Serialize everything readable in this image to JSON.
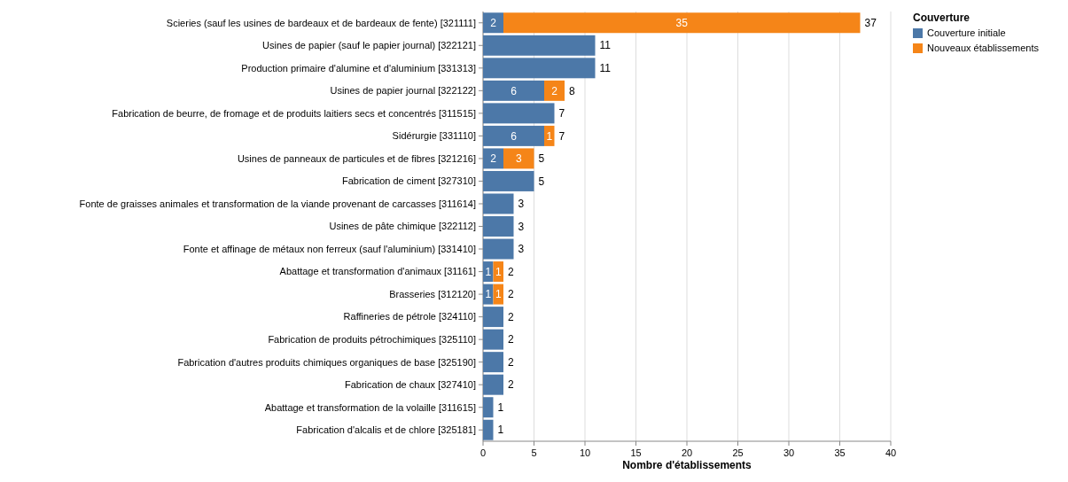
{
  "chart_data": {
    "type": "bar",
    "orientation": "horizontal",
    "stacked": true,
    "xlabel": "Nombre d'établissements",
    "legend_title": "Couverture",
    "legend": "top right",
    "grid": "x",
    "categories": [
      "Scieries (sauf les usines de bardeaux et de bardeaux de fente) [321111]",
      "Usines de papier (sauf le papier journal) [322121]",
      "Production primaire d'alumine et d'aluminium [331313]",
      "Usines de papier journal [322122]",
      "Fabrication de beurre, de fromage et de produits laitiers secs et concentrés [311515]",
      "Sidérurgie [331110]",
      "Usines de panneaux de particules et de fibres [321216]",
      "Fabrication de ciment [327310]",
      "Fonte de graisses animales et transformation de la viande provenant de carcasses [311614]",
      "Usines de pâte chimique [322112]",
      "Fonte et affinage de métaux non ferreux (sauf l'aluminium) [331410]",
      "Abattage et transformation d'animaux [31161]",
      "Brasseries [312120]",
      "Raffineries de pétrole [324110]",
      "Fabrication de produits pétrochimiques [325110]",
      "Fabrication d'autres produits chimiques organiques de base [325190]",
      "Fabrication de chaux [327410]",
      "Abattage et transformation de la volaille [311615]",
      "Fabrication d'alcalis et de chlore [325181]"
    ],
    "series": [
      {
        "name": "Couverture initiale",
        "color": "#4c78a8",
        "values": [
          2,
          11,
          11,
          6,
          7,
          6,
          2,
          5,
          3,
          3,
          3,
          1,
          1,
          2,
          2,
          2,
          2,
          1,
          1
        ],
        "value_labels": [
          "2",
          null,
          null,
          "6",
          null,
          "6",
          "2",
          null,
          null,
          null,
          null,
          "1",
          "1",
          null,
          null,
          null,
          null,
          null,
          null
        ]
      },
      {
        "name": "Nouveaux établissements",
        "color": "#f58518",
        "values": [
          35,
          null,
          null,
          2,
          null,
          1,
          3,
          null,
          null,
          null,
          null,
          1,
          1,
          null,
          null,
          null,
          null,
          null,
          null
        ],
        "value_labels": [
          "35",
          null,
          null,
          "2",
          null,
          "1",
          "3",
          null,
          null,
          null,
          null,
          "1",
          "1",
          null,
          null,
          null,
          null,
          null,
          null
        ]
      }
    ],
    "totals": [
      "37",
      "11",
      "11",
      "8",
      "7",
      "7",
      "5",
      "5",
      "3",
      "3",
      "3",
      "2",
      "2",
      "2",
      "2",
      "2",
      "2",
      "1",
      "1"
    ],
    "xlim": [
      0,
      40
    ],
    "xticks": [
      0,
      5,
      10,
      15,
      20,
      25,
      30,
      35,
      40
    ]
  }
}
